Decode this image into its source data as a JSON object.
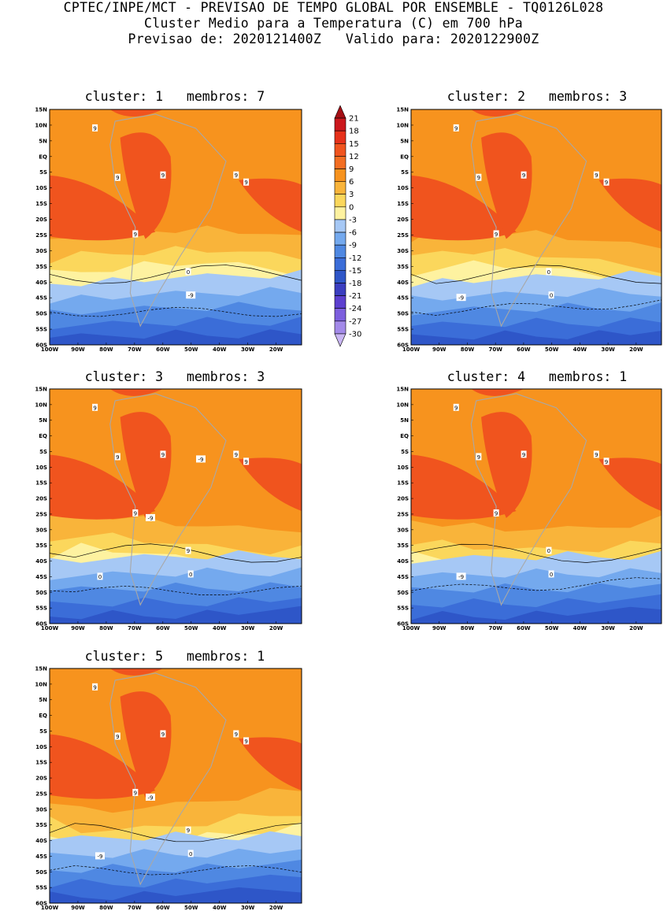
{
  "header": {
    "line1": "CPTEC/INPE/MCT - PREVISAO DE TEMPO GLOBAL POR ENSEMBLE - TQ0126L028",
    "line2": "Cluster Medio para a Temperatura (C) em 700 hPa",
    "line3": "Previsao de: 2020121400Z   Valido para: 2020122900Z"
  },
  "axes": {
    "lat_labels": [
      "15N",
      "10N",
      "5N",
      "EQ",
      "5S",
      "10S",
      "15S",
      "20S",
      "25S",
      "30S",
      "35S",
      "40S",
      "45S",
      "50S",
      "55S",
      "60S"
    ],
    "lon_labels": [
      "100W",
      "90W",
      "80W",
      "70W",
      "60W",
      "50W",
      "40W",
      "30W",
      "20W"
    ]
  },
  "colorbar": {
    "levels": [
      "21",
      "18",
      "15",
      "12",
      "9",
      "6",
      "3",
      "0",
      "-3",
      "-6",
      "-9",
      "-12",
      "-15",
      "-18",
      "-21",
      "-24",
      "-27",
      "-30"
    ],
    "colors": [
      "#a50f15",
      "#cb181d",
      "#e6311a",
      "#f0541e",
      "#f36e22",
      "#f7931e",
      "#f9b43a",
      "#fbd75c",
      "#fef2a0",
      "#a6c8f5",
      "#74a9ee",
      "#4f88e2",
      "#3b6dd8",
      "#2e56c8",
      "#3b3ec0",
      "#5c3fcf",
      "#7d5fde",
      "#a38ae9",
      "#c9b6f3"
    ]
  },
  "panels": [
    {
      "title": "cluster: 1   membros: 7",
      "contours": [
        "9",
        "9",
        "9",
        "9",
        "9",
        "9",
        "0",
        "-9"
      ]
    },
    {
      "title": "cluster: 2   membros: 3",
      "contours": [
        "9",
        "9",
        "9",
        "9",
        "9",
        "9",
        "0",
        "0",
        "-9"
      ]
    },
    {
      "title": "cluster: 3   membros: 3",
      "contours": [
        "9",
        "9",
        "9",
        "9",
        "9",
        "9",
        "9",
        "0",
        "0",
        "-9",
        "-9"
      ]
    },
    {
      "title": "cluster: 4   membros: 1",
      "contours": [
        "9",
        "9",
        "9",
        "9",
        "9",
        "9",
        "0",
        "0",
        "-9"
      ]
    },
    {
      "title": "cluster: 5   membros: 1",
      "contours": [
        "9",
        "9",
        "9",
        "9",
        "9",
        "9",
        "9",
        "0",
        "-9",
        "-9"
      ]
    }
  ]
}
